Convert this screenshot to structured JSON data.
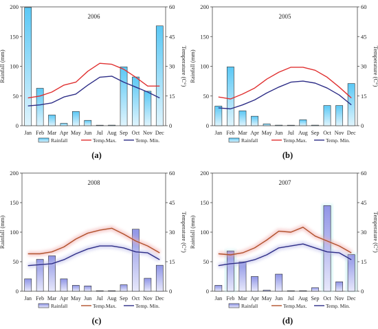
{
  "colors": {
    "bar_fill_top": "#5bc8f5",
    "bar_fill_bottom": "#dff4fd",
    "bar_fill_top_alt": "#8f95e6",
    "bar_fill_bottom_alt": "#e7e8fb",
    "bar_stroke": "#2e2e2e",
    "temp_max": "#e03030",
    "temp_max_alt": "#b0502a",
    "temp_min": "#2c2c86",
    "glow_max": "#f0a8a8",
    "glow_min": "#b9b9e8",
    "text": "#222222"
  },
  "chart_data": [
    {
      "type": "bar",
      "panel_label": "(a)",
      "title": "2006",
      "categories": [
        "Jan",
        "Feb",
        "Mar",
        "Apr",
        "May",
        "Jun",
        "Jul",
        "Aug",
        "Sep",
        "Oct",
        "Nov",
        "Dec"
      ],
      "ylabel": "Rainfall (mm)",
      "y2label": "Temperature (C°)",
      "ylim": [
        0,
        200
      ],
      "y2lim": [
        0,
        60
      ],
      "yticks": [
        "0",
        "50",
        "100",
        "150",
        "200"
      ],
      "y2ticks": [
        "0",
        "15",
        "30",
        "45",
        "60"
      ],
      "style": "blue",
      "series": [
        {
          "name": "Rainfall",
          "kind": "bar",
          "axis": "left",
          "values": [
            199,
            63,
            18,
            4,
            24,
            9,
            0,
            1,
            99,
            82,
            58,
            168
          ]
        },
        {
          "name": "Temp.Max.",
          "kind": "line",
          "axis": "right",
          "values": [
            14,
            15,
            17,
            20.5,
            22,
            27.5,
            31.5,
            31,
            28.5,
            24.5,
            20,
            20
          ]
        },
        {
          "name": "Temp. Min.",
          "kind": "line",
          "axis": "right",
          "values": [
            10,
            10.5,
            11.5,
            14.5,
            16,
            20.5,
            24.5,
            25,
            22,
            19.5,
            17,
            14
          ]
        }
      ],
      "legend": [
        {
          "kind": "bar",
          "label": "Rainfall"
        },
        {
          "kind": "line",
          "label": "Temp.Max."
        },
        {
          "kind": "line",
          "label": "Temp. Min."
        }
      ]
    },
    {
      "type": "bar",
      "panel_label": "(b)",
      "title": "2005",
      "categories": [
        "Jan",
        "Feb",
        "Mar",
        "Apr",
        "May",
        "Jun",
        "Jul",
        "Aug",
        "Sep",
        "Oct",
        "Nov",
        "Dec"
      ],
      "ylabel": "Rainfall (mm)",
      "y2label": "Temperature (C°)",
      "ylim": [
        0,
        200
      ],
      "y2lim": [
        0,
        60
      ],
      "yticks": [
        "0",
        "50",
        "100",
        "150",
        "200"
      ],
      "y2ticks": [
        "0",
        "15",
        "30",
        "45",
        "60"
      ],
      "style": "blue",
      "series": [
        {
          "name": "Rainfall",
          "kind": "bar",
          "axis": "left",
          "values": [
            33,
            99,
            25,
            16,
            3,
            1,
            0,
            10,
            1,
            34,
            34,
            71
          ]
        },
        {
          "name": "Temp.Max.",
          "kind": "line",
          "axis": "right",
          "values": [
            14.5,
            13.5,
            16,
            19,
            23.5,
            27,
            29.5,
            29.5,
            28,
            24.5,
            19.5,
            14
          ]
        },
        {
          "name": "Temp. Min.",
          "kind": "line",
          "axis": "right",
          "values": [
            9,
            8.5,
            10.5,
            13,
            16.5,
            19.5,
            22,
            22.5,
            21.5,
            19,
            15.5,
            10.5
          ]
        }
      ],
      "legend": [
        {
          "kind": "bar",
          "label": "Rainfall"
        },
        {
          "kind": "line",
          "label": "Temp.Max."
        },
        {
          "kind": "line",
          "label": "Temp. Min."
        }
      ]
    },
    {
      "type": "bar",
      "panel_label": "(c)",
      "title": "2008",
      "categories": [
        "Jan",
        "Feb",
        "Mar",
        "Apr",
        "May",
        "Jun",
        "Jul",
        "Aug",
        "Sep",
        "Oct",
        "Nov",
        "Dec"
      ],
      "ylabel": "Rainfall (mm)",
      "y2label": "Temperature (C°)",
      "ylim": [
        0,
        200
      ],
      "y2lim": [
        0,
        60
      ],
      "yticks": [
        "0",
        "50",
        "100",
        "150",
        "200"
      ],
      "y2ticks": [
        "0",
        "15",
        "30",
        "45",
        "60"
      ],
      "style": "purple",
      "series": [
        {
          "name": "Rainfall",
          "kind": "bar",
          "axis": "left",
          "values": [
            21,
            54,
            60,
            21,
            10,
            9,
            0,
            1,
            11,
            105,
            22,
            44
          ]
        },
        {
          "name": "Temp.Max.",
          "kind": "line",
          "axis": "right",
          "values": [
            19,
            19,
            20,
            22.5,
            26.5,
            29.5,
            31,
            32,
            29,
            25.5,
            23,
            19.5
          ]
        },
        {
          "name": "Temp. Min.",
          "kind": "line",
          "axis": "right",
          "values": [
            13,
            13.5,
            14,
            16,
            19,
            21.5,
            23,
            23,
            22,
            20,
            19.5,
            16
          ]
        }
      ],
      "legend": [
        {
          "kind": "bar",
          "label": "Rainfall"
        },
        {
          "kind": "line",
          "label": "Temp.Max."
        },
        {
          "kind": "line",
          "label": "Temp. Min."
        }
      ]
    },
    {
      "type": "bar",
      "panel_label": "(d)",
      "title": "2007",
      "categories": [
        "Jan",
        "Feb",
        "Mar",
        "Apr",
        "May",
        "Jun",
        "Jul",
        "Aug",
        "Sep",
        "Oct",
        "Nov",
        "Dec"
      ],
      "ylabel": "Rainfall (mm)",
      "y2label": "Temperature (C°)",
      "ylim": [
        0,
        200
      ],
      "y2lim": [
        0,
        60
      ],
      "yticks": [
        "0",
        "50",
        "100",
        "150",
        "200"
      ],
      "y2ticks": [
        "0",
        "15",
        "30",
        "45",
        "60"
      ],
      "style": "mixed",
      "series": [
        {
          "name": "Rainfall",
          "kind": "bar",
          "axis": "left",
          "values": [
            10,
            68,
            50,
            25,
            2,
            29,
            0,
            1,
            6,
            145,
            16,
            62
          ]
        },
        {
          "name": "Temp.Max.",
          "kind": "line",
          "axis": "right",
          "values": [
            19,
            18.5,
            19.5,
            22,
            26,
            30.5,
            30,
            32.5,
            28,
            25.5,
            23,
            19.5
          ]
        },
        {
          "name": "Temp. Min.",
          "kind": "line",
          "axis": "right",
          "values": [
            13,
            14,
            14.5,
            16,
            18.5,
            22,
            23,
            24,
            22,
            20,
            19.5,
            16
          ]
        }
      ],
      "legend": [
        {
          "kind": "bar",
          "label": "Rainfall"
        },
        {
          "kind": "line",
          "label": "Temp.Max."
        },
        {
          "kind": "line",
          "label": "Temp. Min."
        }
      ]
    }
  ]
}
